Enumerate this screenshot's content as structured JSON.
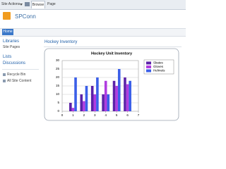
{
  "ribbon": {
    "site_actions": "Site Actions",
    "tabs": [
      "Browse",
      "Page"
    ]
  },
  "header": {
    "site_title": "SPConn"
  },
  "top_nav": {
    "tabs": [
      "Home"
    ]
  },
  "quick_launch": {
    "libraries_heading": "Libraries",
    "library_links": [
      "Site Pages"
    ],
    "lists_heading": "Lists",
    "discussions_heading": "Discussions",
    "footer_links": [
      "Recycle Bin",
      "All Site Content"
    ]
  },
  "web_part": {
    "title": "Hockey Inventory"
  },
  "chart_data": {
    "type": "bar",
    "title": "Hockey Unit Inventory",
    "x": [
      1,
      2,
      3,
      4,
      5,
      6
    ],
    "series": [
      {
        "name": "Skates",
        "color": "#5b22a8",
        "values": [
          5,
          10,
          15,
          10,
          18,
          20
        ]
      },
      {
        "name": "Gloves",
        "color": "#b03ce0",
        "values": [
          2,
          6,
          10,
          18,
          15,
          16
        ]
      },
      {
        "name": "Helmets",
        "color": "#3b5fe8",
        "values": [
          20,
          15,
          20,
          10,
          25,
          18
        ]
      }
    ],
    "xlim": [
      0,
      7
    ],
    "xticks": [
      0,
      1,
      2,
      3,
      4,
      5,
      6,
      7
    ],
    "ylim": [
      0,
      30
    ],
    "yticks": [
      0,
      5,
      10,
      15,
      20,
      25,
      30
    ],
    "grid": true
  }
}
